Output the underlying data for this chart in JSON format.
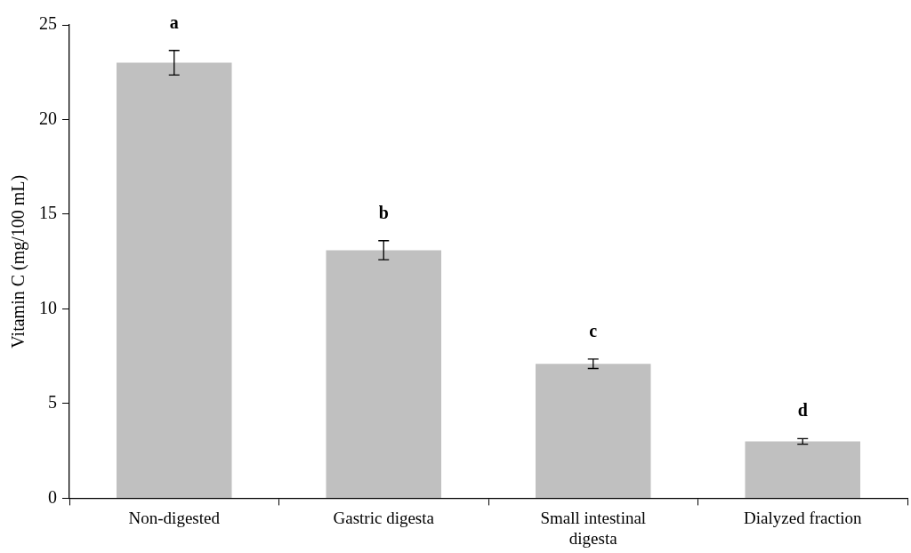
{
  "chart_data": {
    "type": "bar",
    "ylabel": "Vitamin C (mg/100 mL)",
    "categories": [
      "Non-digested",
      "Gastric digesta",
      "Small intestinal digesta",
      "Dialyzed fraction"
    ],
    "values": [
      23,
      13.1,
      7.1,
      3.0
    ],
    "errors": [
      0.65,
      0.5,
      0.25,
      0.15
    ],
    "color": "#c0c0c0",
    "ylim": [
      0,
      25
    ],
    "yticks": [
      0,
      5,
      10,
      15,
      20,
      25
    ],
    "grid": false,
    "legend": false,
    "annotations": [
      "a",
      "b",
      "c",
      "d"
    ]
  }
}
